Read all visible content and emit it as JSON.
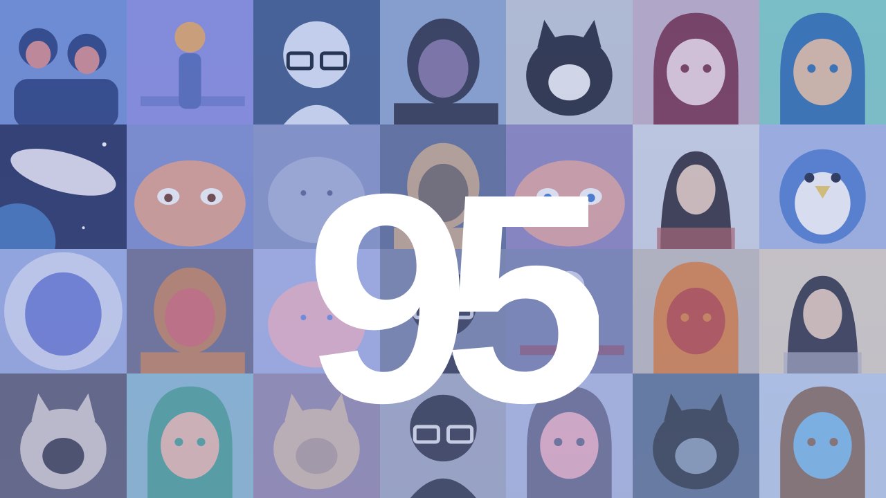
{
  "logo": {
    "text": "95",
    "color": "#ffffff"
  },
  "tint_color": "#7f93cf",
  "tiles": [
    {
      "name": "anime-couple-avatar",
      "bg": "#6f8fd6",
      "fg": "#233a7a",
      "accent": "#d98a8a",
      "shape": "couple"
    },
    {
      "name": "platypus-cartoon-avatar",
      "bg": "#8a8ee0",
      "fg": "#5168b8",
      "accent": "#e9a860",
      "shape": "figure"
    },
    {
      "name": "glasses-sketch-avatar",
      "bg": "#3a5687",
      "fg": "#dfe8f7",
      "accent": "#101a2c",
      "shape": "sketch"
    },
    {
      "name": "cat-filter-selfie-avatar",
      "bg": "#8ea7cf",
      "fg": "#2b2f44",
      "accent": "#c9a6e7",
      "shape": "face"
    },
    {
      "name": "cat-photo-avatar",
      "bg": "#c5cbd6",
      "fg": "#1f2330",
      "accent": "#f2f2f2",
      "shape": "cat"
    },
    {
      "name": "redhair-anime-avatar",
      "bg": "#c7b2c6",
      "fg": "#7a2f47",
      "accent": "#f3d5dc",
      "shape": "anime"
    },
    {
      "name": "spiky-hair-anime-avatar",
      "bg": "#7fd1c5",
      "fg": "#2a6fb0",
      "accent": "#e7c1a0",
      "shape": "anime"
    },
    {
      "name": "hamster-space-avatar",
      "bg": "#1e2a5a",
      "fg": "#e9e4ee",
      "accent": "#3a6fb5",
      "shape": "space"
    },
    {
      "name": "cartoon-face-95-avatar",
      "bg": "#7d8ed0",
      "fg": "#e6a389",
      "accent": "#6e3a2c",
      "shape": "bigface"
    },
    {
      "name": "pusheen-cat-avatar",
      "bg": "#8898c8",
      "fg": "#a8b3d8",
      "accent": "#5a6493",
      "shape": "blob"
    },
    {
      "name": "blonde-woman-avatar",
      "bg": "#5d6d96",
      "fg": "#c9a98a",
      "accent": "#2a3244",
      "shape": "face"
    },
    {
      "name": "patrick-star-avatar",
      "bg": "#8d86c0",
      "fg": "#e4a5a0",
      "accent": "#3f7ad0",
      "shape": "bigface"
    },
    {
      "name": "woman-portrait-avatar",
      "bg": "#d7dde8",
      "fg": "#2e2a33",
      "accent": "#b65b5b",
      "shape": "portrait"
    },
    {
      "name": "piplup-avatar",
      "bg": "#a9bbe8",
      "fg": "#4f7fd1",
      "accent": "#f2d15f",
      "shape": "bird"
    },
    {
      "name": "dragon-costume-avatar",
      "bg": "#9fb1e8",
      "fg": "#6f7fd8",
      "accent": "#d7dff7",
      "shape": "round"
    },
    {
      "name": "horns-selfie-avatar",
      "bg": "#6d6f8f",
      "fg": "#c7835a",
      "accent": "#e8567f",
      "shape": "face"
    },
    {
      "name": "pink-creature-avatar",
      "bg": "#a9b7ea",
      "fg": "#f0b8c9",
      "accent": "#6f8ee6",
      "shape": "blob"
    },
    {
      "name": "manga-panel-avatar",
      "bg": "#7a86a9",
      "fg": "#31384f",
      "accent": "#d0d5e1",
      "shape": "sketch"
    },
    {
      "name": "demon-horns-avatar",
      "bg": "#7d86b4",
      "fg": "#a23a4b",
      "accent": "#d7dbf0",
      "shape": "figure"
    },
    {
      "name": "haikyu-anime-avatar",
      "bg": "#c7c2bf",
      "fg": "#e4853f",
      "accent": "#c3483f",
      "shape": "anime"
    },
    {
      "name": "mirror-selfie-avatar",
      "bg": "#e4d9c7",
      "fg": "#2f3240",
      "accent": "#b3b6c6",
      "shape": "portrait"
    },
    {
      "name": "hanging-cat-avatar",
      "bg": "#5c5e74",
      "fg": "#d8d2d1",
      "accent": "#3b3d4e",
      "shape": "cat"
    },
    {
      "name": "frog-hood-avatar",
      "bg": "#8fc3d8",
      "fg": "#4aa89a",
      "accent": "#f2c4b3",
      "shape": "anime"
    },
    {
      "name": "orange-cat-closeup-avatar",
      "bg": "#9a8fb3",
      "fg": "#d9c2b1",
      "accent": "#b6a5a0",
      "shape": "cat"
    },
    {
      "name": "manga-man-avatar",
      "bg": "#a8b1c8",
      "fg": "#2f3547",
      "accent": "#e8ecf3",
      "shape": "sketch"
    },
    {
      "name": "chibi-girl-avatar",
      "bg": "#b6c2e8",
      "fg": "#6c6f8f",
      "accent": "#f4b8c8",
      "shape": "anime"
    },
    {
      "name": "sea-otter-avatar",
      "bg": "#5f7896",
      "fg": "#2f3a44",
      "accent": "#8ba2b8",
      "shape": "cat"
    },
    {
      "name": "chibi-boy-avatar",
      "bg": "#c2d7f0",
      "fg": "#8a6f5b",
      "accent": "#7fc3f0",
      "shape": "anime"
    }
  ]
}
